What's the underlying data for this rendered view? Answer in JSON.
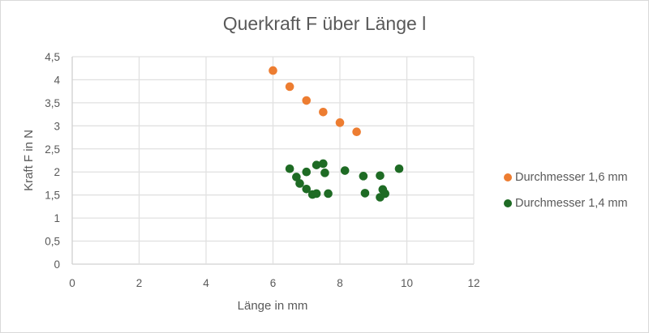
{
  "chart_data": {
    "type": "scatter",
    "title": "Querkraft F über Länge l",
    "xlabel": "Länge in mm",
    "ylabel": "Kraft F in N",
    "xlim": [
      0,
      12
    ],
    "ylim": [
      0,
      4.5
    ],
    "x_ticks": [
      "0",
      "2",
      "4",
      "6",
      "8",
      "10",
      "12"
    ],
    "y_ticks": [
      "0",
      "0,5",
      "1",
      "1,5",
      "2",
      "2,5",
      "3",
      "3,5",
      "4",
      "4,5"
    ],
    "grid": true,
    "legend_position": "right",
    "series": [
      {
        "name": "Durchmesser 1,6 mm",
        "color": "#ED7D31",
        "points": [
          [
            6.0,
            4.2
          ],
          [
            6.5,
            3.85
          ],
          [
            7.0,
            3.55
          ],
          [
            7.5,
            3.3
          ],
          [
            8.0,
            3.07
          ],
          [
            8.5,
            2.87
          ]
        ]
      },
      {
        "name": "Durchmesser 1,4 mm",
        "color": "#1E6B24",
        "points": [
          [
            6.5,
            2.07
          ],
          [
            6.7,
            1.89
          ],
          [
            6.8,
            1.75
          ],
          [
            7.0,
            2.0
          ],
          [
            7.0,
            1.63
          ],
          [
            7.18,
            1.51
          ],
          [
            7.3,
            1.53
          ],
          [
            7.3,
            2.15
          ],
          [
            7.5,
            2.18
          ],
          [
            7.55,
            1.98
          ],
          [
            7.65,
            1.53
          ],
          [
            8.15,
            2.03
          ],
          [
            8.7,
            1.91
          ],
          [
            8.75,
            1.54
          ],
          [
            9.2,
            1.92
          ],
          [
            9.28,
            1.62
          ],
          [
            9.35,
            1.53
          ],
          [
            9.2,
            1.45
          ],
          [
            9.77,
            2.07
          ]
        ]
      }
    ]
  },
  "title": "Querkraft F über Länge l",
  "axes": {
    "x_title": "Länge in mm",
    "y_title": "Kraft F in N"
  },
  "legend": {
    "items": [
      {
        "label": "Durchmesser 1,6 mm",
        "color": "#ED7D31"
      },
      {
        "label": "Durchmesser 1,4 mm",
        "color": "#1E6B24"
      }
    ]
  }
}
